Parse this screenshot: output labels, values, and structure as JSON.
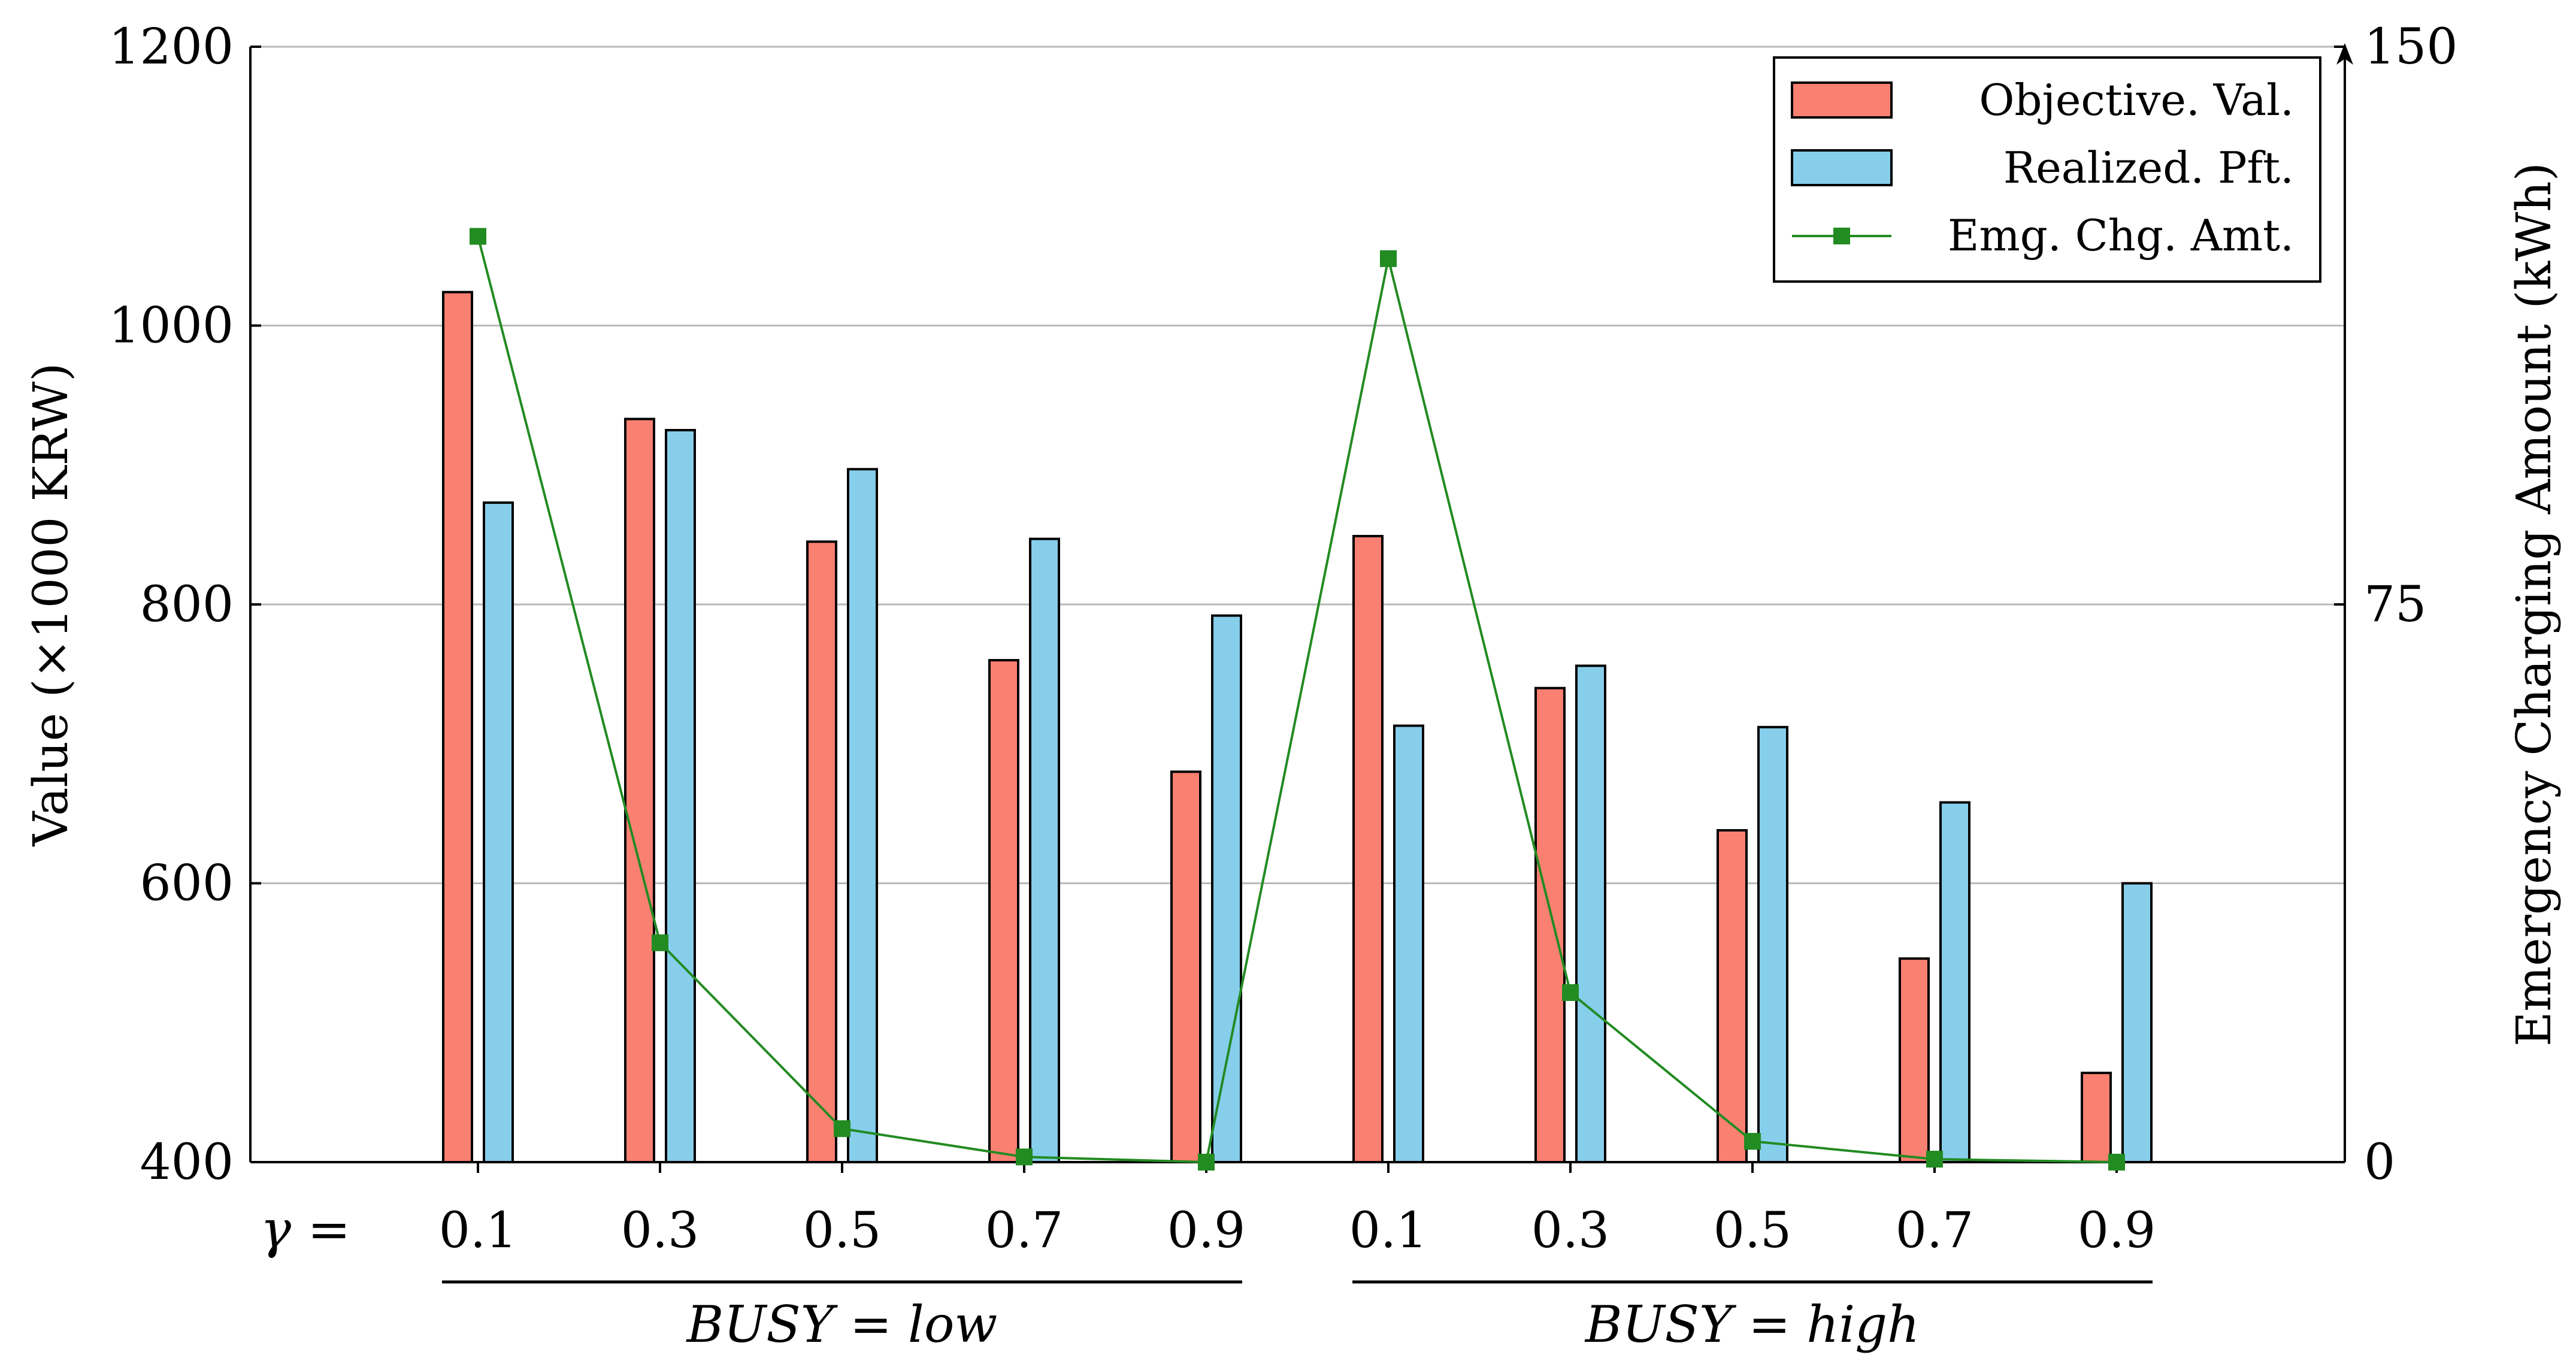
{
  "chart_data": {
    "type": "bar",
    "gamma_label": "γ =",
    "categories": [
      "0.1",
      "0.3",
      "0.5",
      "0.7",
      "0.9",
      "0.1",
      "0.3",
      "0.5",
      "0.7",
      "0.9"
    ],
    "groups": [
      {
        "label": "BUSY = low",
        "start_index": 0,
        "end_index": 4
      },
      {
        "label": "BUSY = high",
        "start_index": 5,
        "end_index": 9
      }
    ],
    "series": [
      {
        "name": "Objective. Val.",
        "kind": "bar",
        "axis": "left",
        "color": "#FA8072",
        "values": [
          1024,
          933,
          845,
          760,
          680,
          849,
          740,
          638,
          546,
          464
        ]
      },
      {
        "name": "Realized. Pft.",
        "kind": "bar",
        "axis": "left",
        "color": "#87CEEB",
        "values": [
          873,
          925,
          897,
          847,
          792,
          713,
          756,
          712,
          658,
          600
        ]
      }
    ],
    "line_series": {
      "name": "Emg. Chg. Amt.",
      "kind": "line",
      "axis": "right",
      "color": "#228B22",
      "values": [
        124.5,
        29.5,
        4.5,
        0.7,
        0,
        121.5,
        22.8,
        2.8,
        0.4,
        0
      ]
    },
    "left_axis": {
      "label": "Value (×1000 KRW)",
      "ylim": [
        400,
        1200
      ],
      "ticks": [
        400,
        600,
        800,
        1000,
        1200
      ]
    },
    "right_axis": {
      "label": "Emergency Charging Amount (kWh)",
      "ylim": [
        0,
        150
      ],
      "ticks": [
        0,
        75,
        150
      ]
    },
    "grid": true,
    "legend_position": "top-right"
  }
}
